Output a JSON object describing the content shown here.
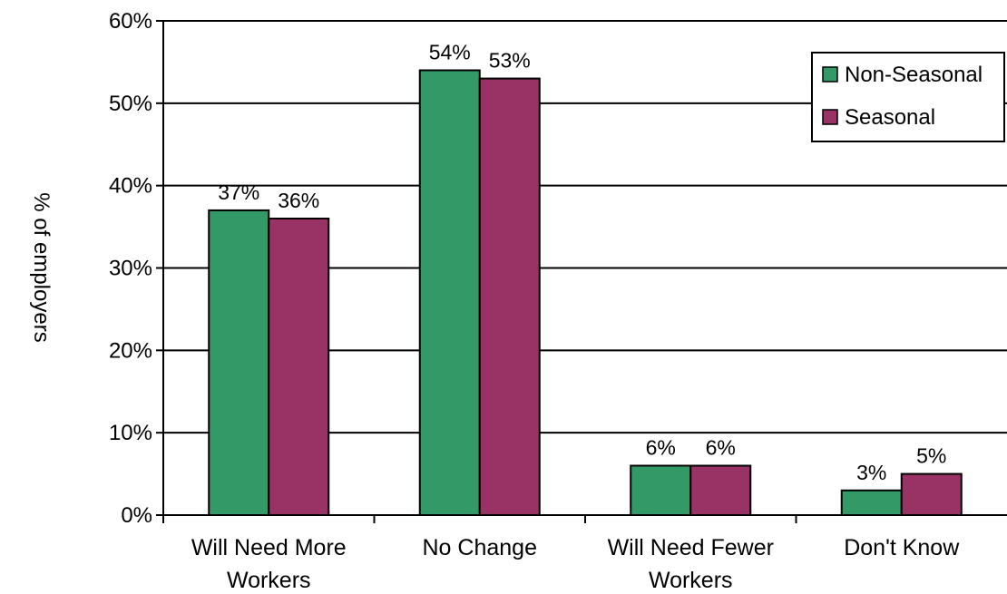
{
  "chart_data": {
    "type": "bar",
    "title": "",
    "xlabel": "",
    "ylabel": "% of employers",
    "ylim": [
      0,
      60
    ],
    "yticks": [
      "0%",
      "10%",
      "20%",
      "30%",
      "40%",
      "50%",
      "60%"
    ],
    "ytick_values": [
      0,
      10,
      20,
      30,
      40,
      50,
      60
    ],
    "grid": "horizontal",
    "legend_position": "top-right",
    "categories": [
      [
        "Will Need More",
        "Workers"
      ],
      [
        "No Change"
      ],
      [
        "Will Need Fewer",
        "Workers"
      ],
      [
        "Don't Know"
      ]
    ],
    "series": [
      {
        "name": "Non-Seasonal",
        "color": "#339966",
        "values": [
          37,
          54,
          6,
          3
        ],
        "labels": [
          "37%",
          "54%",
          "6%",
          "3%"
        ]
      },
      {
        "name": "Seasonal",
        "color": "#993366",
        "values": [
          36,
          53,
          6,
          5
        ],
        "labels": [
          "36%",
          "53%",
          "6%",
          "5%"
        ]
      }
    ]
  }
}
